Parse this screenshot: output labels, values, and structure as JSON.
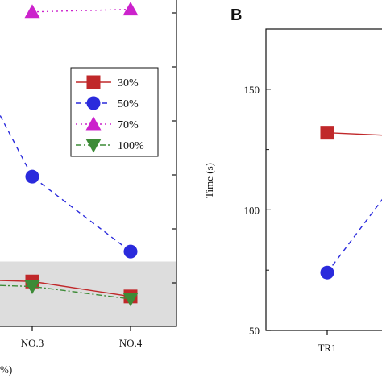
{
  "chart_data": [
    {
      "type": "line",
      "panel_label": "",
      "categories": [
        "NO.3",
        "NO.4"
      ],
      "xlabel_fragment": "%)",
      "series": [
        {
          "name": "30%",
          "values": [
            5,
            2
          ],
          "color": "#c0282a",
          "marker": "square",
          "line": "solid"
        },
        {
          "name": "50%",
          "values": [
            26,
            11
          ],
          "color": "#2a2adc",
          "marker": "circle",
          "line": "dashed"
        },
        {
          "name": "70%",
          "values": [
            59,
            59.5
          ],
          "color": "#cc22cc",
          "marker": "triangle-up",
          "line": "dotted"
        },
        {
          "name": "100%",
          "values": [
            4,
            1.5
          ],
          "color": "#3d8b37",
          "marker": "triangle-down",
          "line": "dashdot"
        }
      ],
      "ylim": [
        -4,
        63
      ],
      "shaded_band": [
        -4,
        9
      ],
      "shaded_band_color": "#dddddd",
      "legend_position": "right"
    },
    {
      "type": "line",
      "panel_label": "B",
      "categories": [
        "TR1"
      ],
      "ylabel": "Time (s)",
      "yticks": [
        "50",
        "100",
        "150"
      ],
      "ylim": [
        50,
        175
      ],
      "series": [
        {
          "name": "30%",
          "values": [
            132
          ],
          "color": "#c0282a",
          "marker": "square",
          "line": "solid"
        },
        {
          "name": "50%",
          "values": [
            74
          ],
          "color": "#2a2adc",
          "marker": "circle",
          "line": "dashed"
        }
      ]
    }
  ]
}
